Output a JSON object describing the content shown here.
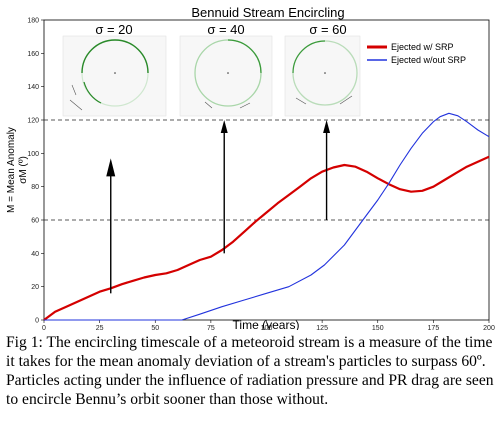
{
  "chart_data": {
    "type": "line",
    "title": "Bennuid Stream Encircling",
    "xlabel": "Time (years)",
    "ylabel": "M = Mean Anomaly",
    "ylabel2": "σM (º)",
    "xlim": [
      0,
      200
    ],
    "ylim": [
      0,
      180
    ],
    "xticks": [
      0,
      25,
      50,
      75,
      100,
      125,
      150,
      175,
      200
    ],
    "yticks": [
      0,
      20,
      40,
      60,
      80,
      100,
      120,
      140,
      160,
      180
    ],
    "reference_lines": [
      60,
      120
    ],
    "legend_position": "top-right",
    "series": [
      {
        "name": "Ejected w/ SRP",
        "color": "#d40000",
        "x": [
          0,
          5,
          10,
          15,
          20,
          25,
          30,
          35,
          40,
          45,
          50,
          55,
          60,
          65,
          70,
          75,
          80,
          85,
          90,
          95,
          100,
          105,
          110,
          115,
          120,
          125,
          130,
          135,
          140,
          145,
          150,
          155,
          160,
          165,
          170,
          175,
          180,
          185,
          190,
          195,
          200
        ],
        "values": [
          0,
          5,
          8,
          11,
          14,
          17,
          19,
          21.5,
          23.5,
          25.5,
          27,
          28,
          30,
          33,
          36,
          38,
          42,
          47,
          53,
          59,
          64.5,
          70,
          75,
          80,
          85,
          89,
          91.5,
          93,
          92,
          89,
          85,
          81.5,
          78.5,
          77,
          77.5,
          80,
          84,
          88,
          92,
          95,
          98
        ]
      },
      {
        "name": "Ejected w/out SRP",
        "color": "#2233dd",
        "x": [
          0,
          20,
          40,
          62,
          70,
          80,
          90,
          100,
          110,
          120,
          126,
          135,
          140,
          145,
          150,
          155,
          160,
          165,
          170,
          175,
          178,
          182,
          186,
          190,
          195,
          200
        ],
        "values": [
          0,
          0,
          0,
          0,
          3.5,
          8,
          12,
          16,
          20,
          27,
          33,
          45,
          54,
          63,
          72,
          82,
          93,
          103,
          112,
          119,
          122,
          124,
          122.5,
          119,
          114,
          110
        ]
      }
    ],
    "annotations": [
      {
        "label": "σ = 20",
        "arrow_x": 30,
        "arrow_from_y": 16,
        "arrow_to_y": 97
      },
      {
        "label": "σ = 40",
        "arrow_x": 81,
        "arrow_from_y": 40,
        "arrow_to_y": 120
      },
      {
        "label": "σ = 60",
        "arrow_x": 127,
        "arrow_from_y": 60,
        "arrow_to_y": 120
      }
    ]
  },
  "caption": "Fig 1: The encircling timescale of a meteoroid stream is a measure of the time it takes for the mean anomaly deviation of a stream's particles to surpass 60º. Particles acting under the influence of radiation pressure and PR drag are seen to encircle Bennu’s orbit sooner than those without."
}
